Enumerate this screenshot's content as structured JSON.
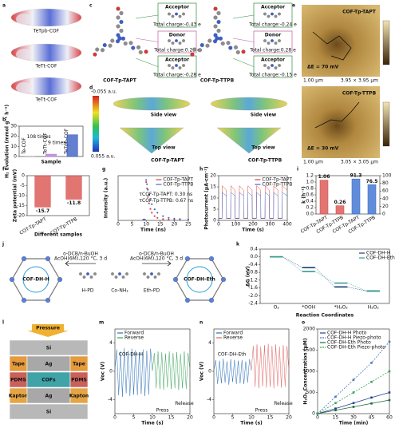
{
  "panels": {
    "labels": [
      "a",
      "b",
      "c",
      "d",
      "e",
      "f",
      "g",
      "h",
      "i",
      "j",
      "k",
      "l",
      "m",
      "n",
      "o"
    ],
    "a": [
      "TeTpb-COF",
      "TeTt-COF",
      "TeTt-COF"
    ],
    "c": {
      "names": [
        "COF-Tp-TAPT",
        "COF-Tp-TTPB"
      ],
      "boxes": [
        {
          "role": "Acceptor",
          "charge": "Total charge:-0.43 e"
        },
        {
          "role": "Donor",
          "charge": "Total charge:0.25 e"
        },
        {
          "role": "Acceptor",
          "charge": "Total charge:-0.28 e"
        },
        {
          "role": "Acceptor",
          "charge": "Total charge:-0.24 e"
        },
        {
          "role": "Donor",
          "charge": "Total charge:0.28 e"
        },
        {
          "role": "Acceptor",
          "charge": "Total charge:-0.15 e"
        }
      ]
    },
    "d": {
      "scale": [
        "-0.055 a.u.",
        "0.055 a.u."
      ],
      "views": [
        "Side view",
        "Top view",
        "Side view",
        "Top view"
      ],
      "names": [
        "COF-Tp-TAPT",
        "COF-Tp-TTPB"
      ]
    },
    "e": [
      {
        "name": "COF-Tp-TAPT",
        "delta": "ΔE = 70 mV",
        "scale": "1.00 μm",
        "size": "3.95 × 3.95 μm"
      },
      {
        "name": "COF-Tp-TTPB",
        "delta": "ΔE = 30 mV",
        "scale": "1.00 μm",
        "size": "3.05 × 3.05 μm"
      }
    ],
    "j": {
      "names": [
        "COF-DH-H",
        "COF-DH-Eth"
      ],
      "monomers": [
        "H-PD",
        "Co-NH₂",
        "Eth-PD"
      ],
      "conditions_left": [
        "o-DCB/n-BuOH",
        "AcOH(6M),120 °C, 3 d"
      ],
      "conditions_right": [
        "o-DCB/n-BuOH",
        "AcOH(6M),120 °C, 3 d"
      ]
    },
    "k": {
      "force": "Pressure",
      "layers": [
        [
          "Si"
        ],
        [
          "Tape",
          "Ag",
          "Tape"
        ],
        [
          "PDMS",
          "COFs",
          "PDMS"
        ],
        [
          "Kapton",
          "Ag",
          "Kapton"
        ],
        [
          "Si"
        ]
      ]
    }
  },
  "chart_data": [
    {
      "type": "bar",
      "categories": [
        "Te-COF",
        "TeTt-COF",
        "TeTpb-COF"
      ],
      "values": [
        0.2,
        2.3,
        21.5
      ],
      "colors": [
        "#9e9e9e",
        "#b57fd6",
        "#3f5fc4"
      ],
      "ylim": [
        0,
        30
      ],
      "yticks": [
        0,
        10,
        20,
        30
      ],
      "ylabel": "H₂ Evolution (mmol g⁻¹ h⁻¹)",
      "xlabel": "Sample",
      "annotations": [
        "108 times",
        "9 times"
      ]
    },
    {
      "type": "bar",
      "categories": [
        "COT-Tp-TAPT",
        "COT-Tp-TTPB"
      ],
      "values": [
        -15.7,
        -11.8
      ],
      "color": "#d9534f",
      "ylim": [
        -20,
        0
      ],
      "yticks": [
        -20,
        -15,
        -10,
        -5,
        0
      ],
      "ylabel": "Zeta potential (mV)",
      "xlabel": "Different samples",
      "show_values": true
    },
    {
      "type": "scatter",
      "x": [
        9,
        9.5,
        10,
        10.3,
        10.6,
        11,
        11.5,
        12,
        13,
        14,
        16,
        18,
        20,
        22,
        25
      ],
      "series": [
        {
          "name": "COF-Tp-TAPT",
          "color": "#e0403a",
          "values": [
            0.02,
            0.02,
            0.9,
            0.75,
            0.55,
            0.4,
            0.27,
            0.18,
            0.1,
            0.06,
            0.03,
            0.02,
            0.02,
            0.02,
            0.02
          ]
        },
        {
          "name": "COF-Tp-TTPB",
          "color": "#3a6fd0",
          "values": [
            0.02,
            0.02,
            0.95,
            0.85,
            0.72,
            0.6,
            0.48,
            0.38,
            0.26,
            0.18,
            0.1,
            0.06,
            0.04,
            0.03,
            0.02
          ]
        }
      ],
      "xlim": [
        0,
        25
      ],
      "xticks": [
        0,
        5,
        10,
        15,
        20,
        25
      ],
      "ylim": [
        0,
        1.05
      ],
      "xlabel": "Time (ns)",
      "ylabel": "Intensity (a.u.)",
      "legend": "upper right",
      "annotations": [
        "τCOF-Tp-TAPT: 0.30 ns",
        "τCOF-Tp-TTPB: 0.67 ns"
      ]
    },
    {
      "type": "line",
      "x": [
        0,
        20,
        21,
        45,
        46,
        70,
        71,
        95,
        96,
        120,
        121,
        145,
        146,
        170,
        171,
        195,
        196,
        220,
        221,
        245,
        246,
        270,
        271,
        295,
        296,
        320,
        321,
        345,
        346,
        370,
        371,
        400
      ],
      "series": [
        {
          "name": "COF-Tp-TAPT",
          "color": "#e0403a",
          "values": [
            1,
            1,
            15.5,
            13.5,
            1,
            1,
            15.5,
            13.5,
            1,
            1,
            15.5,
            13.5,
            1,
            1,
            15.5,
            13.5,
            1,
            1,
            15.5,
            13.5,
            1,
            1,
            15.5,
            13.5,
            1,
            1,
            15.5,
            13.5,
            1,
            1,
            15.5,
            13.5
          ]
        },
        {
          "name": "COF-Tp-TTPB",
          "color": "#3a6fd0",
          "values": [
            0.8,
            0.8,
            12.5,
            11,
            0.8,
            0.8,
            12.5,
            11,
            0.8,
            0.8,
            12.5,
            11,
            0.8,
            0.8,
            12.5,
            11,
            0.8,
            0.8,
            12.5,
            11,
            0.8,
            0.8,
            12.5,
            11,
            0.8,
            0.8,
            12.5,
            11,
            0.8,
            0.8,
            12.5,
            11
          ]
        }
      ],
      "xlim": [
        0,
        400
      ],
      "xticks": [
        0,
        100,
        200,
        300,
        400
      ],
      "ylim": [
        0,
        20
      ],
      "yticks": [
        0,
        5,
        10,
        15,
        20
      ],
      "xlabel": "Time (s)",
      "ylabel": "Photocurrent (μA·cm⁻²)",
      "legend": "upper right"
    },
    {
      "type": "bar",
      "categories": [
        "COF-Tp-TAPT",
        "COF-Tp-TTPB",
        "COF-Tp-TAPT",
        "COF-Tp-TTPB"
      ],
      "series": [
        {
          "color": "#d9534f",
          "values": [
            1.06,
            0.26,
            null,
            null
          ]
        },
        {
          "color": "#3b6fd0",
          "axis": "y2",
          "values": [
            null,
            null,
            91.3,
            76.5
          ]
        }
      ],
      "ylim": [
        0,
        1.2
      ],
      "yticks": [
        {
          "value": 0,
          "label": "0.0"
        },
        0.2,
        0.4,
        0.6,
        0.8,
        {
          "value": 1,
          "label": "1.0"
        },
        1.2
      ],
      "y2lim": [
        0,
        100
      ],
      "y2ticks": [
        0,
        20,
        40,
        60,
        80,
        100
      ],
      "ylabel": "k (h⁻¹)",
      "show_values": true
    },
    {
      "type": "step",
      "categories": [
        "O₂",
        "*OOH",
        "*H₂O₂",
        "H₂O₂"
      ],
      "series": [
        {
          "name": "COF-DH-H",
          "color": "#1f3b7a",
          "values": [
            0,
            -0.55,
            -1.55,
            -1.76
          ]
        },
        {
          "name": "COF-DH-Eth",
          "color": "#2e9e8f",
          "values": [
            0,
            -0.75,
            -1.35,
            -1.76
          ]
        }
      ],
      "ylim": [
        -2.4,
        0.4
      ],
      "yticks": [
        0.4,
        {
          "value": 0,
          "label": "0.0"
        },
        -0.4,
        -0.8,
        -1.2,
        -1.6,
        {
          "value": -2,
          "label": "-2.0"
        },
        -2.4
      ],
      "ylabel": "ΔG (eV)",
      "xlabel": "Reaction Coordinates",
      "legend": "upper right"
    },
    {
      "type": "line",
      "x": [
        0,
        0.5,
        1,
        1.5,
        2,
        2.5,
        3,
        3.5,
        4,
        4.5,
        5,
        5.5,
        6,
        6.5,
        7,
        7.5,
        8,
        8.5,
        9,
        9.5,
        10,
        10.5,
        11,
        11.5,
        12,
        12.5,
        13,
        13.5,
        14,
        14.5,
        15,
        15.5,
        16,
        16.5,
        17,
        17.5,
        18,
        18.5,
        19,
        19.5,
        20
      ],
      "series": [
        {
          "name": "Forward",
          "color": "#2a6fb5",
          "values": [
            0.2,
            3.1,
            -3.4,
            2.8,
            -3.6,
            3.3,
            -3.1,
            2.9,
            -3.5,
            3.2,
            -3.3,
            3.0,
            -3.4,
            2.7,
            -3.2,
            3.1,
            -3.5,
            2.9,
            -3.3,
            3.2,
            0.1,
            null,
            null,
            null,
            null,
            null,
            null,
            null,
            null,
            null,
            null,
            null,
            null,
            null,
            null,
            null,
            null,
            null,
            null,
            null,
            null
          ]
        },
        {
          "name": "Reverse",
          "color": "#3aa35a",
          "values": [
            null,
            null,
            null,
            null,
            null,
            null,
            null,
            null,
            null,
            null,
            null,
            null,
            null,
            null,
            null,
            null,
            null,
            null,
            null,
            null,
            0.1,
            2.6,
            -2.4,
            2.8,
            -2.5,
            2.7,
            -2.6,
            2.5,
            -2.3,
            2.8,
            -2.5,
            2.6,
            -2.4,
            2.7,
            -2.6,
            2.5,
            -2.4,
            2.8,
            -2.5,
            2.6,
            0.2
          ]
        }
      ],
      "xlim": [
        0,
        20
      ],
      "xticks": [
        0,
        5,
        10,
        15,
        20
      ],
      "ylim": [
        -6,
        6
      ],
      "yticks": [
        -4,
        0,
        4
      ],
      "xlabel": "Time (s)",
      "ylabel": "Voc (V)",
      "legend": "upper left",
      "annotations": [
        "COF-DH-H",
        "Release",
        "Press"
      ]
    },
    {
      "type": "line",
      "x": [
        0,
        0.5,
        1,
        1.5,
        2,
        2.5,
        3,
        3.5,
        4,
        4.5,
        5,
        5.5,
        6,
        6.5,
        7,
        7.5,
        8,
        8.5,
        9,
        9.5,
        10,
        10.5,
        11,
        11.5,
        12,
        12.5,
        13,
        13.5,
        14,
        14.5,
        15,
        15.5,
        16,
        16.5,
        17,
        17.5,
        18,
        18.5,
        19,
        19.5,
        20
      ],
      "series": [
        {
          "name": "Forward",
          "color": "#2a6fb5",
          "values": [
            0.1,
            1.6,
            -1.8,
            1.5,
            -1.7,
            1.8,
            -1.6,
            1.4,
            -1.9,
            1.7,
            -1.5,
            1.6,
            -1.8,
            1.5,
            -1.7,
            1.6,
            -1.8,
            1.4,
            -1.6,
            1.7,
            0.1,
            null,
            null,
            null,
            null,
            null,
            null,
            null,
            null,
            null,
            null,
            null,
            null,
            null,
            null,
            null,
            null,
            null,
            null,
            null,
            null
          ]
        },
        {
          "name": "Reverse",
          "color": "#e06060",
          "values": [
            null,
            null,
            null,
            null,
            null,
            null,
            null,
            null,
            null,
            null,
            null,
            null,
            null,
            null,
            null,
            null,
            null,
            null,
            null,
            null,
            0.2,
            3.6,
            -2.2,
            3.8,
            -2.4,
            3.5,
            -2.1,
            3.7,
            -2.3,
            3.9,
            -2.2,
            3.6,
            -2.4,
            3.8,
            -2.1,
            3.5,
            -2.3,
            3.7,
            -2.2,
            3.6,
            0.1
          ]
        }
      ],
      "xlim": [
        0,
        20
      ],
      "xticks": [
        0,
        5,
        10,
        15,
        20
      ],
      "ylim": [
        -6,
        6
      ],
      "yticks": [
        -4,
        0,
        4
      ],
      "xlabel": "Time (s)",
      "ylabel": "Voc (V)",
      "legend": "upper left",
      "annotations": [
        "COF-DH-Eth",
        "Release",
        "Press"
      ]
    },
    {
      "type": "line",
      "markers": true,
      "x": [
        0,
        15,
        30,
        45,
        60
      ],
      "series": [
        {
          "name": "COF-DH-H Photo",
          "color": "#243f8f",
          "values": [
            0,
            120,
            250,
            380,
            500
          ]
        },
        {
          "name": "COF-DH-H Piezo-photo",
          "color": "#4a78c2",
          "dash": true,
          "values": [
            0,
            400,
            800,
            1200,
            1700
          ]
        },
        {
          "name": "COF-DH-Eth Photo",
          "color": "#1e6b3a",
          "values": [
            0,
            80,
            160,
            240,
            320
          ]
        },
        {
          "name": "COF-DH-Eth Piezo-photo",
          "color": "#3aa35a",
          "dash": true,
          "values": [
            0,
            250,
            500,
            750,
            1000
          ]
        }
      ],
      "xlim": [
        0,
        60
      ],
      "xticks": [
        0,
        15,
        30,
        45,
        60
      ],
      "ylim": [
        0,
        2000
      ],
      "yticks": [
        0,
        500,
        1000,
        1500,
        2000
      ],
      "xlabel": "Time (min)",
      "ylabel": "H₂O₂ Concentration (μM)",
      "legend": "upper left"
    }
  ]
}
